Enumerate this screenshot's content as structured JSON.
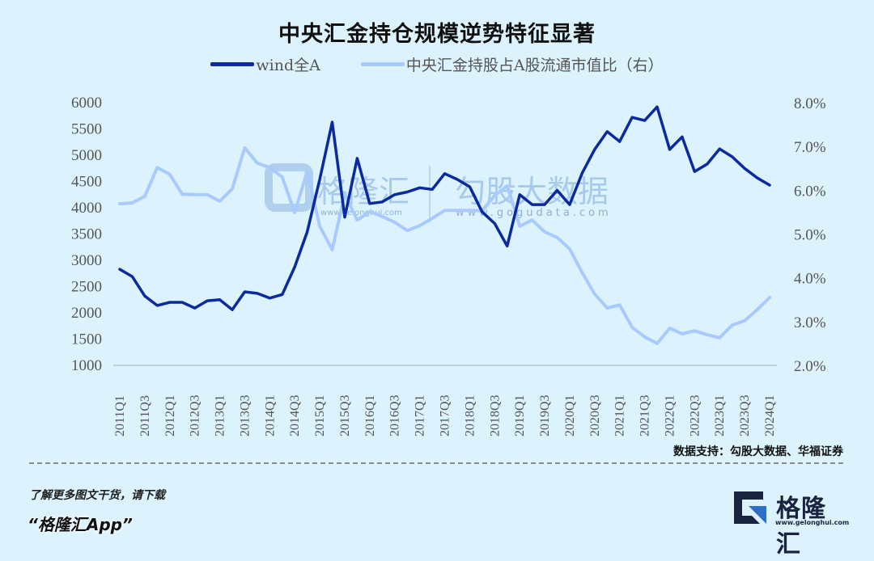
{
  "title": "中央汇金持仓规模逆势特征显著",
  "legend": [
    {
      "label": "wind全A",
      "color": "#0a2a9e"
    },
    {
      "label": "中央汇金持股占A股流通市值比（右）",
      "color": "#a8caff"
    }
  ],
  "source": "数据支持：勾股大数据、华福证券",
  "watermark": {
    "left": "格隆汇",
    "left_url": "www.gelonghui.com",
    "right": "勾股大数据",
    "right_url": "www.gogudata.com"
  },
  "footer": {
    "line1": "了解更多图文干货，请下载",
    "line2": "“格隆汇App”"
  },
  "logo": {
    "name": "格隆汇",
    "url": "www.gelonghui.com"
  },
  "chart_data": {
    "type": "line",
    "title": "中央汇金持仓规模逆势特征显著",
    "xlabel": "",
    "ylabel": "",
    "y2label": "",
    "ylim": [
      1000,
      6000
    ],
    "y2lim": [
      2.0,
      8.0
    ],
    "yticks": [
      "6000",
      "5500",
      "5000",
      "4500",
      "4000",
      "3500",
      "3000",
      "2500",
      "2000",
      "1500",
      "1000"
    ],
    "y2ticks": [
      "8.0%",
      "7.0%",
      "6.0%",
      "5.0%",
      "4.0%",
      "3.0%",
      "2.0%"
    ],
    "xtick_labels": [
      "2011Q1",
      "2011Q3",
      "2012Q1",
      "2012Q3",
      "2013Q1",
      "2013Q3",
      "2014Q1",
      "2014Q3",
      "2015Q1",
      "2015Q3",
      "2016Q1",
      "2016Q3",
      "2017Q1",
      "2017Q3",
      "2018Q1",
      "2018Q3",
      "2019Q1",
      "2019Q3",
      "2020Q1",
      "2020Q3",
      "2021Q1",
      "2021Q3",
      "2022Q1",
      "2022Q3",
      "2023Q1",
      "2023Q3",
      "2024Q1"
    ],
    "x": [
      "2011Q1",
      "2011Q2",
      "2011Q3",
      "2011Q4",
      "2012Q1",
      "2012Q2",
      "2012Q3",
      "2012Q4",
      "2013Q1",
      "2013Q2",
      "2013Q3",
      "2013Q4",
      "2014Q1",
      "2014Q2",
      "2014Q3",
      "2014Q4",
      "2015Q1",
      "2015Q2",
      "2015Q3",
      "2015Q4",
      "2016Q1",
      "2016Q2",
      "2016Q3",
      "2016Q4",
      "2017Q1",
      "2017Q2",
      "2017Q3",
      "2017Q4",
      "2018Q1",
      "2018Q2",
      "2018Q3",
      "2018Q4",
      "2019Q1",
      "2019Q2",
      "2019Q3",
      "2019Q4",
      "2020Q1",
      "2020Q2",
      "2020Q3",
      "2020Q4",
      "2021Q1",
      "2021Q2",
      "2021Q3",
      "2021Q4",
      "2022Q1",
      "2022Q2",
      "2022Q3",
      "2022Q4",
      "2023Q1",
      "2023Q2",
      "2023Q3",
      "2023Q4",
      "2024Q1"
    ],
    "series": [
      {
        "name": "wind全A",
        "axis": "left",
        "color": "#0a2a9e",
        "values": [
          2830,
          2690,
          2320,
          2140,
          2200,
          2200,
          2090,
          2230,
          2250,
          2060,
          2400,
          2370,
          2280,
          2350,
          2875,
          3540,
          4540,
          5630,
          3820,
          4940,
          4080,
          4110,
          4250,
          4300,
          4380,
          4350,
          4650,
          4540,
          4400,
          3920,
          3700,
          3270,
          4250,
          4060,
          4060,
          4330,
          4060,
          4660,
          5110,
          5450,
          5260,
          5720,
          5660,
          5920,
          5110,
          5350,
          4690,
          4830,
          5120,
          4970,
          4750,
          4570,
          4430
        ]
      },
      {
        "name": "中央汇金持股占A股流通市值比（右）",
        "axis": "right",
        "unit": "%",
        "color": "#a8caff",
        "values": [
          5.69,
          5.71,
          5.86,
          6.52,
          6.36,
          5.91,
          5.9,
          5.9,
          5.75,
          6.03,
          6.97,
          6.62,
          6.52,
          6.3,
          5.49,
          6.43,
          5.18,
          4.64,
          5.91,
          5.32,
          5.51,
          5.4,
          5.27,
          5.08,
          5.19,
          5.36,
          5.54,
          5.54,
          5.54,
          5.53,
          5.88,
          6.1,
          5.18,
          5.32,
          5.05,
          4.92,
          4.66,
          4.12,
          3.63,
          3.31,
          3.38,
          2.87,
          2.65,
          2.5,
          2.85,
          2.72,
          2.79,
          2.7,
          2.63,
          2.92,
          3.02,
          3.27,
          3.55
        ]
      }
    ],
    "grid": false,
    "legend_position": "top"
  }
}
